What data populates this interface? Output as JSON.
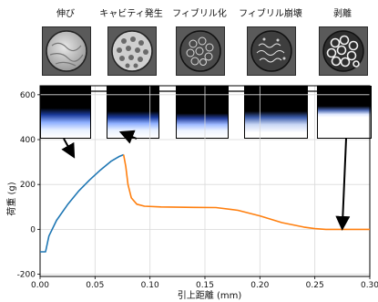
{
  "stages": [
    {
      "label": "伸び",
      "image": "disk-stretched-icon"
    },
    {
      "label": "キャビティ発生",
      "image": "disk-cavities-icon"
    },
    {
      "label": "フィブリル化",
      "image": "disk-fibrils-icon"
    },
    {
      "label": "フィブリル崩壊",
      "image": "disk-fibril-collapse-icon"
    },
    {
      "label": "剥離",
      "image": "disk-peel-icon"
    }
  ],
  "chart_data": {
    "type": "line",
    "title": "",
    "xlabel": "引上距離 (mm)",
    "ylabel": "荷重 (g)",
    "xlim": [
      0,
      0.3
    ],
    "ylim": [
      -210,
      640
    ],
    "xticks": [
      "0.00",
      "0.05",
      "0.10",
      "0.15",
      "0.20",
      "0.25",
      "0.30"
    ],
    "yticks": [
      "-200",
      "0",
      "200",
      "400",
      "600"
    ],
    "grid": true,
    "series": [
      {
        "color": "#1f77b4",
        "points": [
          [
            0,
            -100
          ],
          [
            0.005,
            -100
          ],
          [
            0.008,
            -30
          ],
          [
            0.015,
            40
          ],
          [
            0.025,
            110
          ],
          [
            0.035,
            170
          ],
          [
            0.045,
            220
          ],
          [
            0.055,
            265
          ],
          [
            0.065,
            305
          ],
          [
            0.072,
            325
          ],
          [
            0.076,
            333
          ]
        ]
      },
      {
        "color": "#ff7f0e",
        "points": [
          [
            0.076,
            333
          ],
          [
            0.078,
            280
          ],
          [
            0.08,
            200
          ],
          [
            0.083,
            140
          ],
          [
            0.088,
            112
          ],
          [
            0.095,
            103
          ],
          [
            0.11,
            100
          ],
          [
            0.14,
            98
          ],
          [
            0.16,
            97
          ],
          [
            0.18,
            85
          ],
          [
            0.2,
            60
          ],
          [
            0.22,
            30
          ],
          [
            0.24,
            10
          ],
          [
            0.25,
            3
          ],
          [
            0.26,
            0
          ],
          [
            0.3,
            0
          ]
        ]
      }
    ],
    "annotations": [
      {
        "type": "arrow",
        "to": [
          0.03,
          330
        ]
      },
      {
        "type": "arrow",
        "to": [
          0.075,
          430
        ]
      },
      {
        "type": "arrow",
        "to": [
          0.275,
          10
        ]
      }
    ]
  }
}
